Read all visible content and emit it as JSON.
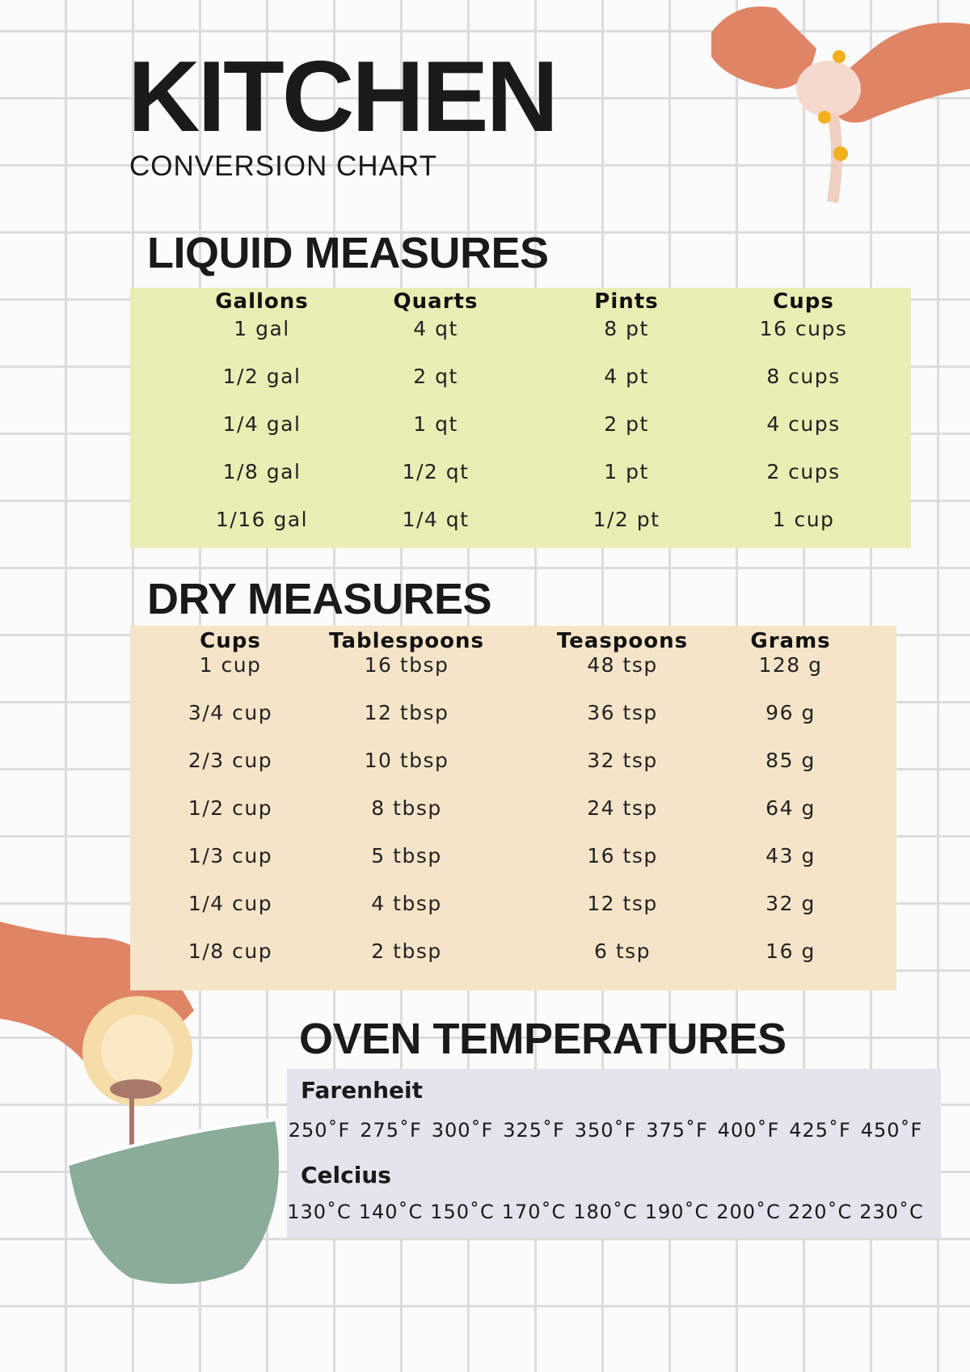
{
  "header": {
    "title": "KITCHEN",
    "subtitle": "CONVERSION CHART"
  },
  "liquid": {
    "heading": "LIQUID MEASURES",
    "color": "#e9eeb4",
    "columns": [
      "Gallons",
      "Quarts",
      "Pints",
      "Cups"
    ],
    "rows": [
      [
        "1 gal",
        "4 qt",
        "8 pt",
        "16 cups"
      ],
      [
        "1/2 gal",
        "2 qt",
        "4 pt",
        "8 cups"
      ],
      [
        "1/4 gal",
        "1 qt",
        "2 pt",
        "4 cups"
      ],
      [
        "1/8 gal",
        "1/2 qt",
        "1 pt",
        "2 cups"
      ],
      [
        "1/16 gal",
        "1/4 qt",
        "1/2 pt",
        "1 cup"
      ]
    ]
  },
  "dry": {
    "heading": "DRY MEASURES",
    "color": "#f6e4c9",
    "columns": [
      "Cups",
      "Tablespoons",
      "Teaspoons",
      "Grams"
    ],
    "rows": [
      [
        "1 cup",
        "16 tbsp",
        "48 tsp",
        "128 g"
      ],
      [
        "3/4 cup",
        "12 tbsp",
        "36 tsp",
        "96 g"
      ],
      [
        "2/3 cup",
        "10 tbsp",
        "32 tsp",
        "85 g"
      ],
      [
        "1/2 cup",
        "8 tbsp",
        "24 tsp",
        "64 g"
      ],
      [
        "1/3 cup",
        "5 tbsp",
        "16 tsp",
        "43 g"
      ],
      [
        "1/4 cup",
        "4 tbsp",
        "12 tsp",
        "32 g"
      ],
      [
        "1/8 cup",
        "2 tbsp",
        "6 tsp",
        "16 g"
      ]
    ]
  },
  "oven": {
    "heading": "OVEN TEMPERATURES",
    "color": "#e3e4ed",
    "fahrenheit_label": "Farenheit",
    "fahrenheit": [
      "250˚F",
      "275˚F",
      "300˚F",
      "325˚F",
      "350˚F",
      "375˚F",
      "400˚F",
      "425˚F",
      "450˚F"
    ],
    "celsius_label": "Celcius",
    "celsius": [
      "130˚C",
      "140˚C",
      "150˚C",
      "170˚C",
      "180˚C",
      "190˚C",
      "200˚C",
      "220˚C",
      "230˚C"
    ]
  },
  "illustrations": [
    "hands-cracking-egg-icon",
    "hand-pouring-bowl-icon"
  ]
}
